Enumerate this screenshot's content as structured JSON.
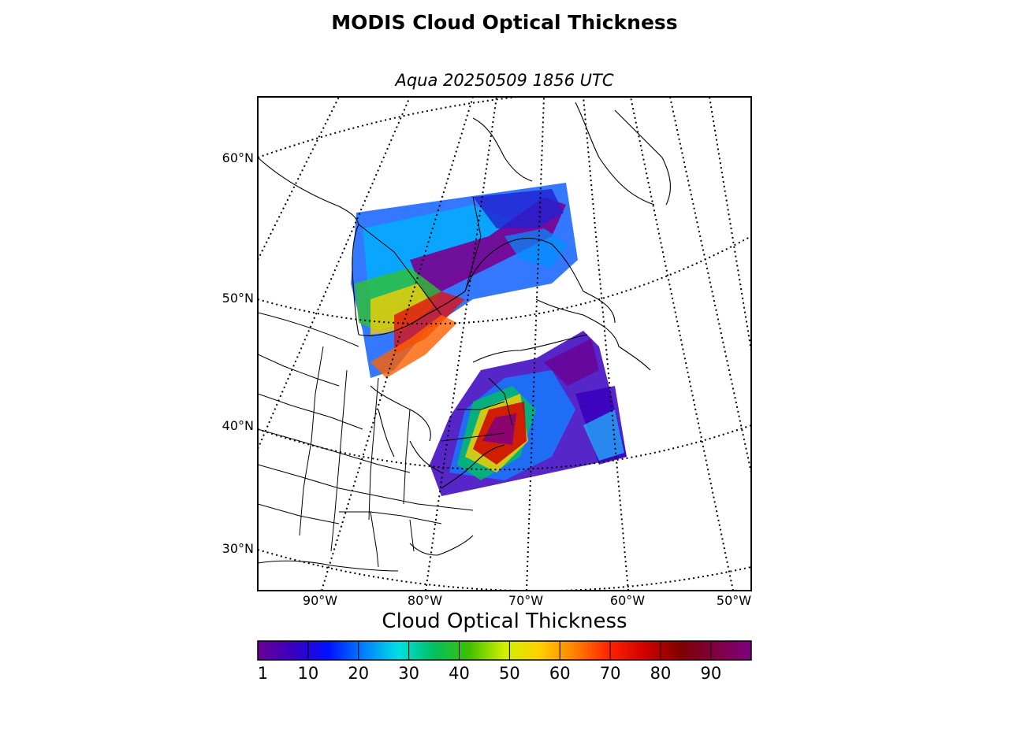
{
  "figure": {
    "title": "MODIS Cloud Optical Thickness",
    "subtitle": "Aqua 20250509 1856 UTC"
  },
  "map": {
    "projection": "conic",
    "lat_labels": [
      "60°N",
      "50°N",
      "40°N",
      "30°N"
    ],
    "lon_labels": [
      "90°W",
      "80°W",
      "70°W",
      "60°W",
      "50°W"
    ],
    "graticule": "dotted"
  },
  "colorbar": {
    "title": "Cloud Optical Thickness",
    "ticks": [
      "1",
      "10",
      "20",
      "30",
      "40",
      "50",
      "60",
      "70",
      "80",
      "90"
    ],
    "min": 1,
    "max": 100,
    "colors": [
      "#6a0094",
      "#3a00c0",
      "#0010ff",
      "#0080ff",
      "#00e0e0",
      "#00c060",
      "#40c000",
      "#d0f000",
      "#ffd000",
      "#ff8000",
      "#ff2000",
      "#d00000",
      "#800000",
      "#800040",
      "#800080"
    ]
  }
}
